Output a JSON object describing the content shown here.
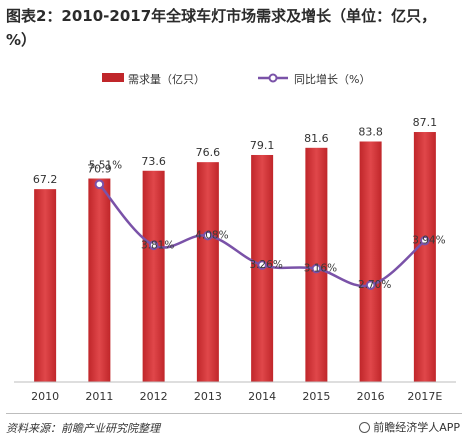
{
  "title": "图表2：2010-2017年全球车灯市场需求及增长（单位：亿只，%）",
  "legend": {
    "bar_label": "需求量（亿只）",
    "line_label": "同比增长（%）"
  },
  "source": "资料来源：前瞻产业研究院整理",
  "brand": "前瞻经济学人APP",
  "colors": {
    "bar": "#c0262a",
    "bar_light": "#e0474a",
    "line": "#7a52a8",
    "text": "#333333"
  },
  "chart_data": {
    "type": "bar",
    "categories": [
      "2010",
      "2011",
      "2012",
      "2013",
      "2014",
      "2015",
      "2016",
      "2017E"
    ],
    "series": [
      {
        "name": "需求量（亿只）",
        "type": "bar",
        "values": [
          67.2,
          70.9,
          73.6,
          76.6,
          79.1,
          81.6,
          83.8,
          87.1
        ],
        "labels": [
          "67.2",
          "70.9",
          "73.6",
          "76.6",
          "79.1",
          "81.6",
          "83.8",
          "87.1"
        ]
      },
      {
        "name": "同比增长（%）",
        "type": "line",
        "values": [
          null,
          5.51,
          3.81,
          4.08,
          3.26,
          3.16,
          2.7,
          3.94
        ],
        "labels": [
          "",
          "5.51%",
          "3.81%",
          "4.08%",
          "3.26%",
          "3.16%",
          "2.70%",
          "3.94%"
        ]
      }
    ],
    "bar_axis_range": [
      0,
      100
    ],
    "line_axis_range": [
      0,
      8
    ],
    "grid": false,
    "legend_position": "top"
  }
}
